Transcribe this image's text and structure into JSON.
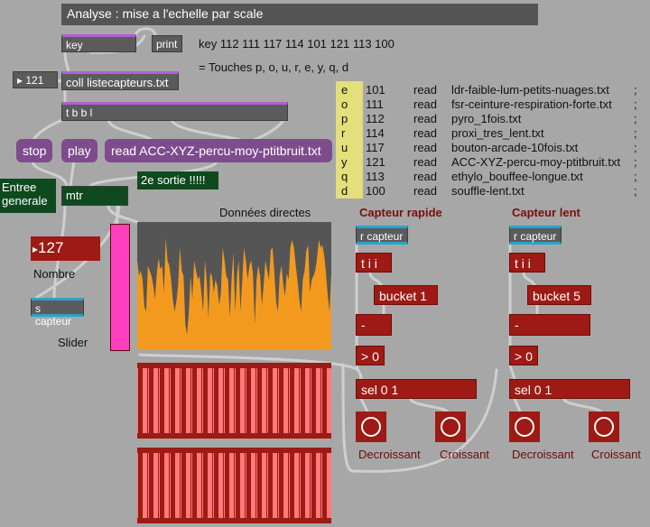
{
  "title": "Analyse : mise a l'echelle par scale",
  "objects": {
    "key": "key",
    "print": "print",
    "number_121": "121",
    "coll": "coll listecapteurs.txt",
    "tbbl": "t b b l",
    "stop": "stop",
    "play": "play",
    "read_msg": "read ACC-XYZ-percu-moy-ptitbruit.txt",
    "entree_generale": "Entree generale",
    "mtr": "mtr",
    "deuxieme_sortie": "2e sortie !!!!!",
    "number_127": "127",
    "nombre_label": "Nombre",
    "s_capteur": "s capteur",
    "slider_label": "Slider",
    "donnees_directes": "Données directes"
  },
  "key_line": "key 112 111 117 114 101 121 113 100",
  "touches_line": "= Touches p, o, u, r, e, y, q, d",
  "file_table": {
    "letters": [
      "e",
      "o",
      "p",
      "r",
      "u",
      "y",
      "q",
      "d"
    ],
    "codes": [
      "101",
      "111",
      "112",
      "114",
      "117",
      "121",
      "113",
      "100"
    ],
    "read": [
      "read",
      "read",
      "read",
      "read",
      "read",
      "read",
      "read",
      "read"
    ],
    "files": [
      "ldr-faible-lum-petits-nuages.txt",
      "fsr-ceinture-respiration-forte.txt",
      "pyro_1fois.txt",
      "proxi_tres_lent.txt",
      "bouton-arcade-10fois.txt",
      "ACC-XYZ-percu-moy-ptitbruit.txt",
      "ethylo_bouffee-longue.txt",
      "souffle-lent.txt"
    ],
    "semis": [
      ";",
      ";",
      ";",
      ";",
      ";",
      ";",
      ";",
      ";"
    ]
  },
  "capteur_rapide": {
    "title": "Capteur rapide",
    "r_capteur": "r capteur",
    "tii": "t i i",
    "bucket": "bucket 1",
    "minus": "-",
    "gt0": "> 0",
    "sel": "sel 0 1",
    "decroissant": "Decroissant",
    "croissant": "Croissant"
  },
  "capteur_lent": {
    "title": "Capteur lent",
    "r_capteur": "r capteur",
    "tii": "t i i",
    "bucket": "bucket 5",
    "minus": "-",
    "gt0": "> 0",
    "sel": "sel 0 1",
    "decroissant": "Decroissant",
    "croissant": "Croissant"
  },
  "slider": {
    "value": 127,
    "max": 127,
    "color": "#ff3fc0"
  },
  "colors": {
    "accent_purple": "#b45fd0",
    "red_obj": "#9e1a14",
    "orange": "#f39a1e",
    "cyan": "#2ba3c9",
    "pink": "#ff3fc0"
  },
  "waveform": [
    0.7,
    0.58,
    0.62,
    0.55,
    0.34,
    0.3,
    0.66,
    0.62,
    0.58,
    0.5,
    0.4,
    0.6,
    0.72,
    0.63,
    0.66,
    0.45,
    0.88,
    0.7,
    0.66,
    0.55,
    0.4,
    0.3,
    0.38,
    0.52,
    0.8,
    0.62,
    0.58,
    0.2,
    0.12,
    0.3,
    0.58,
    0.4,
    0.7,
    0.62,
    0.55,
    0.58,
    0.45,
    0.3,
    0.7,
    0.55,
    0.25,
    0.6,
    0.58,
    0.45,
    0.55,
    0.5,
    0.35,
    0.45,
    0.8,
    0.7,
    0.58,
    0.55,
    0.25,
    0.55,
    0.76,
    0.3,
    0.58,
    0.7,
    0.3,
    0.55,
    0.8,
    0.7,
    0.55,
    0.66,
    0.7,
    0.6,
    0.2,
    0.55,
    0.66,
    0.58,
    0.35,
    0.5,
    0.7,
    0.62,
    0.55,
    0.78,
    0.8,
    0.6,
    0.38,
    0.3,
    0.58,
    0.66,
    0.52,
    0.42,
    0.6,
    0.55,
    0.8,
    0.86,
    0.8,
    0.66,
    0.55,
    0.4,
    0.3,
    0.55,
    0.62,
    0.78,
    0.82,
    0.45,
    0.55,
    0.58,
    0.62,
    0.72,
    0.86,
    0.8,
    0.82,
    0.74,
    0.6,
    0.42,
    0.3,
    0.6
  ]
}
